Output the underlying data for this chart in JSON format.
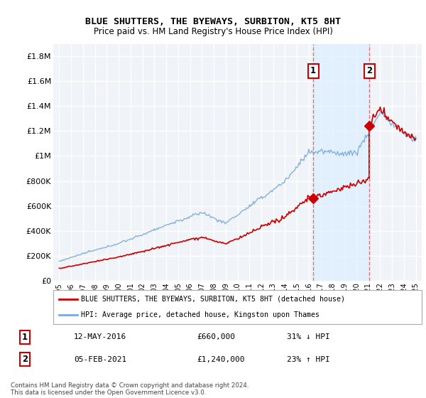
{
  "title": "BLUE SHUTTERS, THE BYEWAYS, SURBITON, KT5 8HT",
  "subtitle": "Price paid vs. HM Land Registry's House Price Index (HPI)",
  "legend_line1": "BLUE SHUTTERS, THE BYEWAYS, SURBITON, KT5 8HT (detached house)",
  "legend_line2": "HPI: Average price, detached house, Kingston upon Thames",
  "annotation1_label": "1",
  "annotation1_date": "12-MAY-2016",
  "annotation1_price": "£660,000",
  "annotation1_hpi": "31% ↓ HPI",
  "annotation2_label": "2",
  "annotation2_date": "05-FEB-2021",
  "annotation2_price": "£1,240,000",
  "annotation2_hpi": "23% ↑ HPI",
  "footnote": "Contains HM Land Registry data © Crown copyright and database right 2024.\nThis data is licensed under the Open Government Licence v3.0.",
  "sale1_x": 2016.37,
  "sale1_y": 660000,
  "sale2_x": 2021.09,
  "sale2_y": 1240000,
  "red_color": "#cc0000",
  "blue_color": "#7aaadd",
  "shade_color": "#ddeeff",
  "dashed_color": "#dd6666",
  "ylim_min": 0,
  "ylim_max": 1900000,
  "xlim_min": 1994.5,
  "xlim_max": 2025.5,
  "yticks": [
    0,
    200000,
    400000,
    600000,
    800000,
    1000000,
    1200000,
    1400000,
    1600000,
    1800000
  ],
  "ytick_labels": [
    "£0",
    "£200K",
    "£400K",
    "£600K",
    "£800K",
    "£1M",
    "£1.2M",
    "£1.4M",
    "£1.6M",
    "£1.8M"
  ],
  "xticks": [
    1995,
    1996,
    1997,
    1998,
    1999,
    2000,
    2001,
    2002,
    2003,
    2004,
    2005,
    2006,
    2007,
    2008,
    2009,
    2010,
    2011,
    2012,
    2013,
    2014,
    2015,
    2016,
    2017,
    2018,
    2019,
    2020,
    2021,
    2022,
    2023,
    2024,
    2025
  ],
  "bg_color": "#f0f4f8",
  "grid_color": "#ffffff"
}
